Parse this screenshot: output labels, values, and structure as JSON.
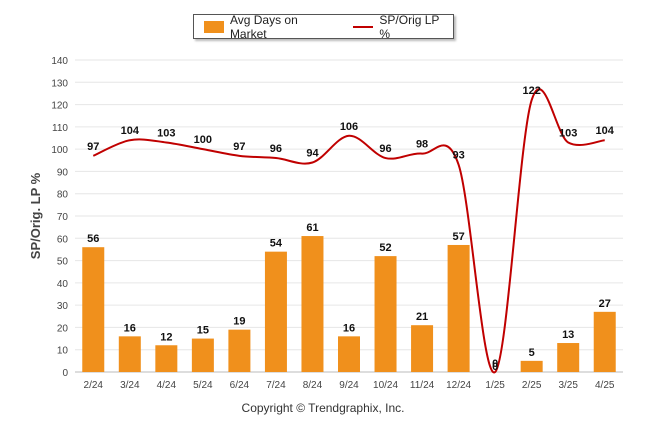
{
  "chart_data": {
    "type": "bar",
    "categories": [
      "2/24",
      "3/24",
      "4/24",
      "5/24",
      "6/24",
      "7/24",
      "8/24",
      "9/24",
      "10/24",
      "11/24",
      "12/24",
      "1/25",
      "2/25",
      "3/25",
      "4/25"
    ],
    "series": [
      {
        "name": "Avg Days on Market",
        "type": "bar",
        "color": "#f0901c",
        "values": [
          56,
          16,
          12,
          15,
          19,
          54,
          61,
          16,
          52,
          21,
          57,
          0,
          5,
          13,
          27
        ]
      },
      {
        "name": "SP/Orig LP %",
        "type": "line",
        "color": "#c00000",
        "values": [
          97,
          104,
          103,
          100,
          97,
          96,
          94,
          106,
          96,
          98,
          93,
          0,
          122,
          103,
          104
        ]
      }
    ],
    "ylabel": "SP/Orig. LP %",
    "ylim": [
      0,
      140
    ],
    "yticks": [
      0,
      10,
      20,
      30,
      40,
      50,
      60,
      70,
      80,
      90,
      100,
      110,
      120,
      130,
      140
    ],
    "grid": true,
    "legend_position": "top-center"
  },
  "copyright": "Copyright © Trendgraphix, Inc."
}
